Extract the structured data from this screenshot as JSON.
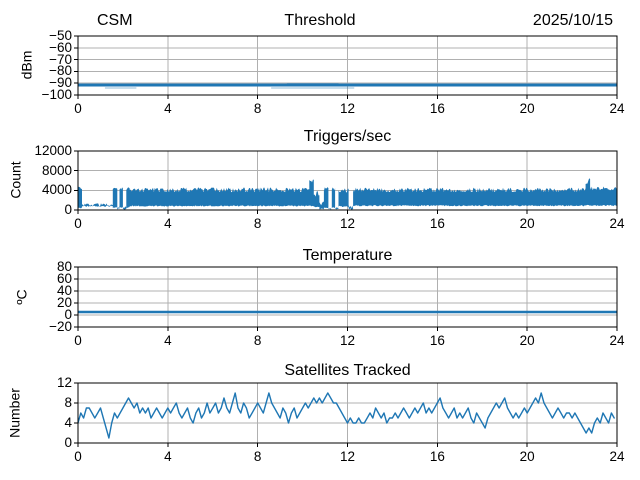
{
  "header": {
    "left": "CSM",
    "center": "Threshold",
    "right": "2025/10/15"
  },
  "colors": {
    "series": "#1f77b4",
    "grid": "#b0b0b0",
    "spine": "#000000",
    "text": "#000000",
    "background": "#ffffff"
  },
  "chart_data": [
    {
      "type": "line",
      "title": "Threshold",
      "ylabel": "dBm",
      "ylim": [
        -100,
        -50
      ],
      "yticks": {
        "values": [
          -50,
          -60,
          -70,
          -80,
          -90,
          -100
        ],
        "labels": [
          "−50",
          "−60",
          "−70",
          "−80",
          "−90",
          "−100"
        ]
      },
      "xlim": [
        0,
        24
      ],
      "xticks": {
        "values": [
          0,
          4,
          8,
          12,
          16,
          20,
          24
        ],
        "labels": [
          "0",
          "4",
          "8",
          "12",
          "16",
          "20",
          "24"
        ]
      },
      "grid": true,
      "series": {
        "kind": "noisy-flat",
        "mean": -91.5,
        "band": [
          -92.8,
          -90.3
        ],
        "overshoot_value": -90.0,
        "overshoot_regions": [
          [
            9.3,
            11.6
          ]
        ],
        "undershoot_value": -93.6,
        "undershoot_regions": [
          [
            1.2,
            2.6
          ],
          [
            8.6,
            12.3
          ]
        ]
      }
    },
    {
      "type": "area",
      "title": "Triggers/sec",
      "ylabel": "Count",
      "ylim": [
        0,
        12000
      ],
      "yticks": {
        "values": [
          0,
          4000,
          8000,
          12000
        ],
        "labels": [
          "0",
          "4000",
          "8000",
          "12000"
        ]
      },
      "xlim": [
        0,
        24
      ],
      "xticks": {
        "values": [
          0,
          4,
          8,
          12,
          16,
          20,
          24
        ],
        "labels": [
          "0",
          "4",
          "8",
          "12",
          "16",
          "20",
          "24"
        ]
      },
      "grid": true,
      "series": {
        "kind": "noisy-area",
        "segments_format": [
          "x_start",
          "x_end",
          "lower",
          "upper_base",
          "upper_variation"
        ],
        "segments": [
          [
            0.0,
            0.18,
            300,
            4500,
            300
          ],
          [
            0.18,
            1.55,
            650,
            1100,
            300
          ],
          [
            1.55,
            1.75,
            400,
            4300,
            300
          ],
          [
            1.75,
            1.85,
            100,
            600,
            250
          ],
          [
            1.85,
            2.0,
            400,
            4400,
            300
          ],
          [
            2.0,
            2.15,
            80,
            500,
            250
          ],
          [
            2.15,
            2.3,
            400,
            4300,
            300
          ],
          [
            2.3,
            10.3,
            700,
            4100,
            500
          ],
          [
            10.3,
            10.5,
            700,
            5400,
            800
          ],
          [
            10.5,
            10.75,
            500,
            3300,
            600
          ],
          [
            10.75,
            10.95,
            100,
            1300,
            500
          ],
          [
            10.95,
            11.15,
            300,
            4300,
            600
          ],
          [
            11.15,
            11.3,
            60,
            400,
            250
          ],
          [
            11.3,
            11.45,
            300,
            4400,
            400
          ],
          [
            11.45,
            11.6,
            60,
            400,
            250
          ],
          [
            11.6,
            12.05,
            600,
            4000,
            500
          ],
          [
            12.05,
            12.25,
            100,
            700,
            400
          ],
          [
            12.25,
            22.6,
            750,
            4100,
            450
          ],
          [
            22.6,
            22.8,
            800,
            5800,
            700
          ],
          [
            22.8,
            24.0,
            800,
            4400,
            400
          ]
        ]
      }
    },
    {
      "type": "line",
      "title": "Temperature",
      "ylabel": "ºC",
      "ylim": [
        -20,
        80
      ],
      "yticks": {
        "values": [
          80,
          60,
          40,
          20,
          0,
          -20
        ],
        "labels": [
          "80",
          "60",
          "40",
          "20",
          "0",
          "−20"
        ]
      },
      "xlim": [
        0,
        24
      ],
      "xticks": {
        "values": [
          0,
          4,
          8,
          12,
          16,
          20,
          24
        ],
        "labels": [
          "0",
          "4",
          "8",
          "12",
          "16",
          "20",
          "24"
        ]
      },
      "grid": true,
      "series": {
        "kind": "flat",
        "value": 5
      }
    },
    {
      "type": "line",
      "title": "Satellites Tracked",
      "ylabel": "Number",
      "ylim": [
        0,
        12
      ],
      "yticks": {
        "values": [
          0,
          4,
          8,
          12
        ],
        "labels": [
          "0",
          "4",
          "8",
          "12"
        ]
      },
      "xlim": [
        0,
        24
      ],
      "xticks": {
        "values": [
          0,
          4,
          8,
          12,
          16,
          20,
          24
        ],
        "labels": [
          "0",
          "4",
          "8",
          "12",
          "16",
          "20",
          "24"
        ]
      },
      "grid": true,
      "series": {
        "kind": "line",
        "x_start": 0,
        "x_step": 0.125,
        "values": [
          4,
          6,
          5,
          7,
          7,
          6,
          5,
          6,
          7,
          5,
          3,
          1,
          4,
          6,
          5,
          6,
          7,
          8,
          9,
          8,
          7,
          8,
          6,
          7,
          6,
          7,
          5,
          6,
          7,
          6,
          5,
          6,
          7,
          6,
          7,
          8,
          6,
          5,
          6,
          7,
          5,
          4,
          6,
          7,
          5,
          6,
          8,
          6,
          7,
          8,
          6,
          7,
          9,
          7,
          6,
          8,
          10,
          7,
          6,
          8,
          7,
          5,
          6,
          7,
          8,
          7,
          6,
          8,
          10,
          8,
          7,
          6,
          5,
          7,
          6,
          4,
          6,
          7,
          5,
          6,
          7,
          8,
          7,
          8,
          9,
          8,
          9,
          8,
          9,
          10,
          9,
          8,
          8,
          7,
          6,
          5,
          4,
          5,
          4,
          4,
          5,
          4,
          4,
          5,
          6,
          5,
          7,
          6,
          5,
          6,
          4,
          5,
          5,
          6,
          5,
          6,
          7,
          6,
          5,
          6,
          7,
          6,
          7,
          8,
          6,
          7,
          6,
          7,
          8,
          9,
          7,
          6,
          5,
          6,
          7,
          5,
          6,
          5,
          6,
          7,
          5,
          4,
          6,
          5,
          4,
          3,
          5,
          6,
          7,
          8,
          7,
          8,
          9,
          7,
          6,
          5,
          6,
          5,
          6,
          7,
          6,
          7,
          8,
          9,
          8,
          10,
          8,
          7,
          6,
          5,
          6,
          7,
          6,
          5,
          6,
          6,
          5,
          6,
          5,
          4,
          3,
          2,
          3,
          2,
          4,
          5,
          4,
          6,
          5,
          4,
          6,
          5
        ]
      }
    }
  ]
}
